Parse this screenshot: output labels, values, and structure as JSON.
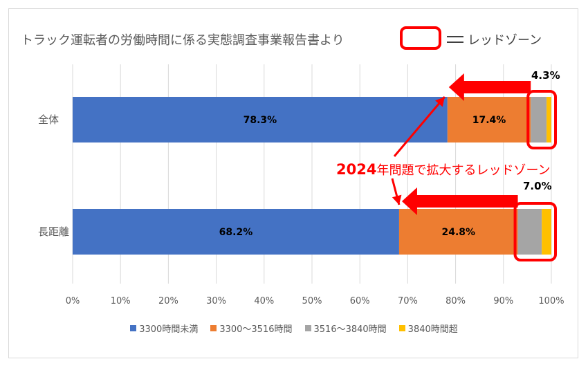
{
  "chart_data": {
    "type": "bar",
    "orientation": "horizontal",
    "stacked": true,
    "title": "トラック運転者の労働時間に係る実態調査事業報告書より",
    "legend_key_label": "レッドゾーン",
    "annotation_num": "2024",
    "annotation_text": "年問題で拡大するレッドゾーン",
    "categories": [
      "全体",
      "長距離"
    ],
    "series": [
      {
        "name": "3300時間未満",
        "color": "#4472c4",
        "values": [
          78.3,
          68.2
        ],
        "labels": [
          "78.3%",
          "68.2%"
        ]
      },
      {
        "name": "3300〜3516時間",
        "color": "#ed7d31",
        "values": [
          17.4,
          24.8
        ],
        "labels": [
          "17.4%",
          "24.8%"
        ]
      },
      {
        "name": "3516〜3840時間",
        "color": "#a5a5a5",
        "values": [
          3.3,
          5.0
        ],
        "labels": [
          "",
          ""
        ]
      },
      {
        "name": "3840時間超",
        "color": "#ffc000",
        "values": [
          1.0,
          2.0
        ],
        "labels": [
          "",
          ""
        ]
      }
    ],
    "callouts": [
      "4.3%",
      "7.0%"
    ],
    "x_ticks": [
      "0%",
      "10%",
      "20%",
      "30%",
      "40%",
      "50%",
      "60%",
      "70%",
      "80%",
      "90%",
      "100%"
    ],
    "xlim": [
      0,
      100
    ],
    "grid": true,
    "legend_position": "bottom",
    "highlight_color": "#ff0000"
  }
}
